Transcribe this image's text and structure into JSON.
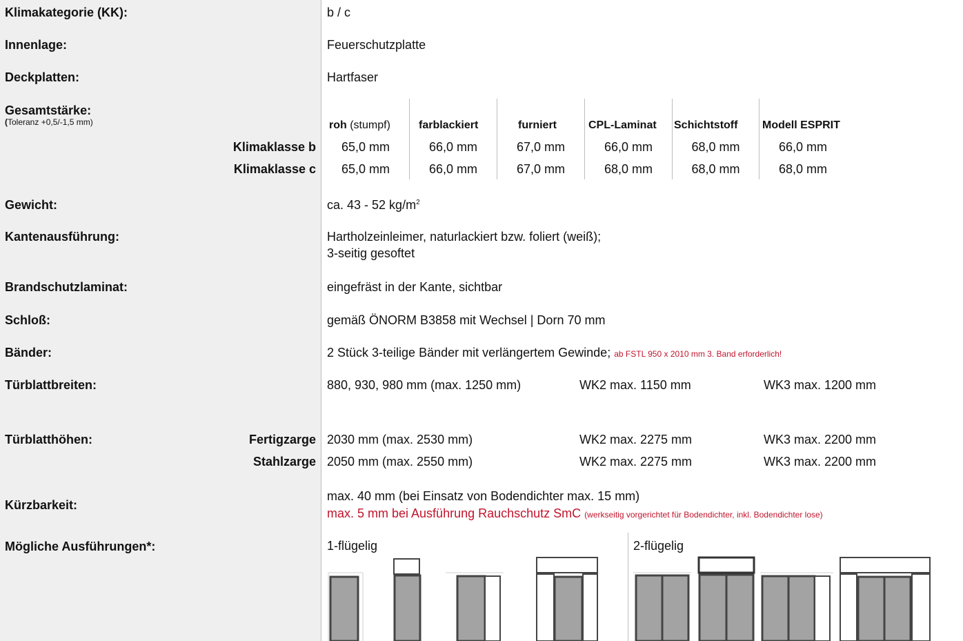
{
  "labels": {
    "klima": "Klimakategorie (KK):",
    "innenlage": "Innenlage:",
    "deckplatten": "Deckplatten:",
    "gesamt": "Gesamtstärke:",
    "gesamt_tol_paren": "(",
    "gesamt_tol": "Toleranz +0,5/-1,5 mm)",
    "gewicht": "Gewicht:",
    "kanten": "Kantenausführung:",
    "brand": "Brandschutzlaminat:",
    "schloss": "Schloß:",
    "baender": "Bänder:",
    "breiten": "Türblattbreiten:",
    "hoehen": "Türblatthöhen:",
    "kuerz": "Kürzbarkeit:",
    "moeglich": "Mögliche Ausführungen*:"
  },
  "values": {
    "klima": "b / c",
    "innenlage": "Feuerschutzplatte",
    "deckplatten": "Hartfaser",
    "gewicht": "ca. 43 - 52 kg/m",
    "gewicht_sup": "2",
    "kanten_line1": "Hartholzeinleimer, naturlackiert bzw. foliert (weiß);",
    "kanten_line2": "3-seitig gesoftet",
    "brand": "eingefräst in der Kante, sichtbar",
    "schloss": "gemäß ÖNORM B3858 mit Wechsel | Dorn 70 mm",
    "baender": "2 Stück 3-teilige Bänder mit verlängertem Gewinde;",
    "baender_note": "ab FSTL 950 x 2010 mm 3. Band erforderlich!",
    "breiten": [
      "880, 930, 980 mm (max. 1250 mm)",
      "WK2 max. 1150 mm",
      "WK3 max. 1200 mm"
    ],
    "kuerz_line1": "max. 40 mm (bei Einsatz von Bodendichter max. 15 mm)",
    "kuerz_line2": "max. 5 mm bei Ausführung Rauchschutz SmC",
    "kuerz_note": "(werkseitig vorgerichtet für Bodendichter, inkl. Bodendichter lose)",
    "einfluegelig": "1-flügelig",
    "zweifluegelig": "2-flügelig"
  },
  "thickness": {
    "headers": [
      {
        "bold": "roh",
        "normal": " (stumpf)"
      },
      {
        "bold": "farblackiert",
        "normal": ""
      },
      {
        "bold": "furniert",
        "normal": ""
      },
      {
        "bold": "CPL-Laminat",
        "normal": ""
      },
      {
        "bold": "Schichtstoff",
        "normal": ""
      },
      {
        "bold": "Modell ESPRIT",
        "normal": ""
      }
    ],
    "rows": [
      {
        "label": "Klimaklasse b",
        "cells": [
          "65,0 mm",
          "66,0 mm",
          "67,0 mm",
          "66,0 mm",
          "68,0 mm",
          "66,0 mm"
        ]
      },
      {
        "label": "Klimaklasse c",
        "cells": [
          "65,0 mm",
          "66,0 mm",
          "67,0 mm",
          "68,0 mm",
          "68,0 mm",
          "68,0 mm"
        ]
      }
    ]
  },
  "heights": {
    "rows": [
      {
        "label": "Fertigzarge",
        "cells": [
          "2030 mm (max. 2530 mm)",
          "WK2 max. 2275 mm",
          "WK3 max. 2200 mm"
        ]
      },
      {
        "label": "Stahlzarge",
        "cells": [
          "2050 mm (max. 2550 mm)",
          "WK2 max. 2275 mm",
          "WK3 max. 2200 mm"
        ]
      }
    ]
  },
  "colors": {
    "accent_red": "#c0142c",
    "left_bg": "#efefef",
    "door_fill": "#a3a3a3"
  }
}
